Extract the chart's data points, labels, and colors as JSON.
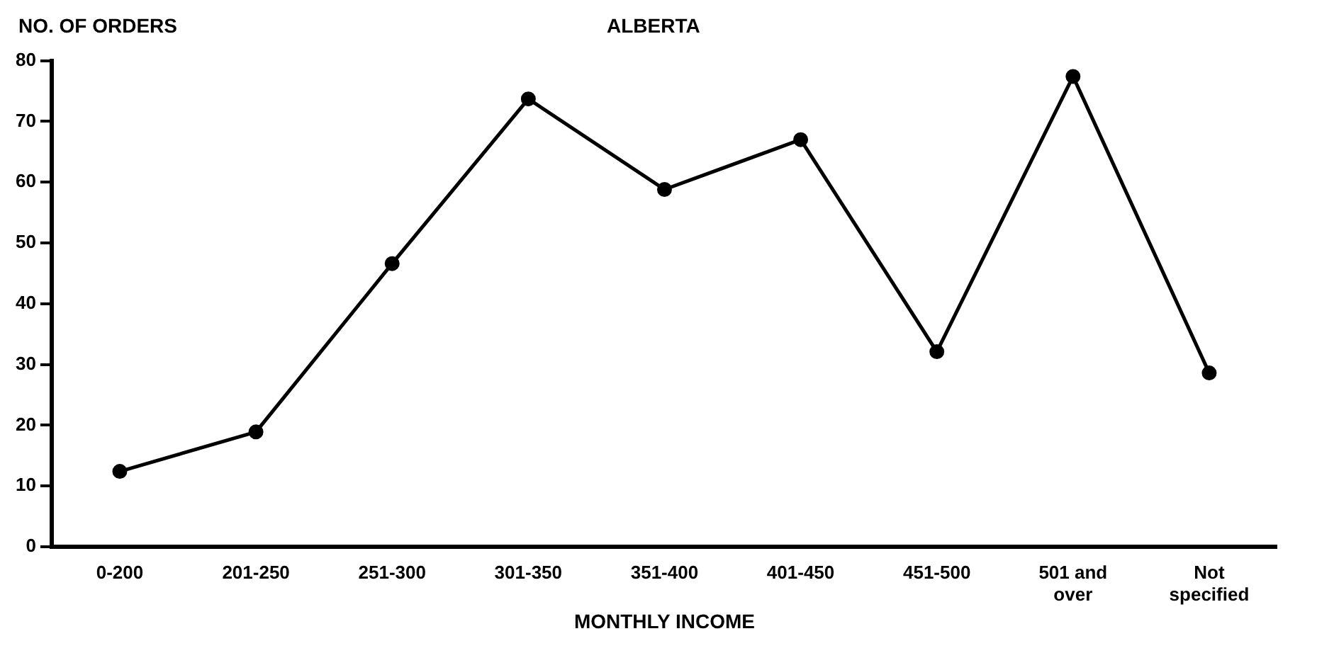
{
  "chart_data": {
    "type": "line",
    "title": "ALBERTA",
    "ylabel": "NO. OF ORDERS",
    "xlabel": "MONTHLY INCOME",
    "categories": [
      "0-200",
      "201-250",
      "251-300",
      "301-350",
      "351-400",
      "401-450",
      "451-500",
      "501 and\nover",
      "Not\nspecified"
    ],
    "series": [
      {
        "color": "#000000",
        "values": [
          12.4,
          18.9,
          46.6,
          73.7,
          58.8,
          67,
          32.1,
          77.4,
          28.6
        ]
      }
    ],
    "ylim": [
      0,
      80
    ],
    "yticks": [
      0,
      10,
      20,
      30,
      40,
      50,
      60,
      70,
      80
    ],
    "grid": false,
    "legend": false,
    "marker": "circle",
    "line_style": "solid"
  }
}
